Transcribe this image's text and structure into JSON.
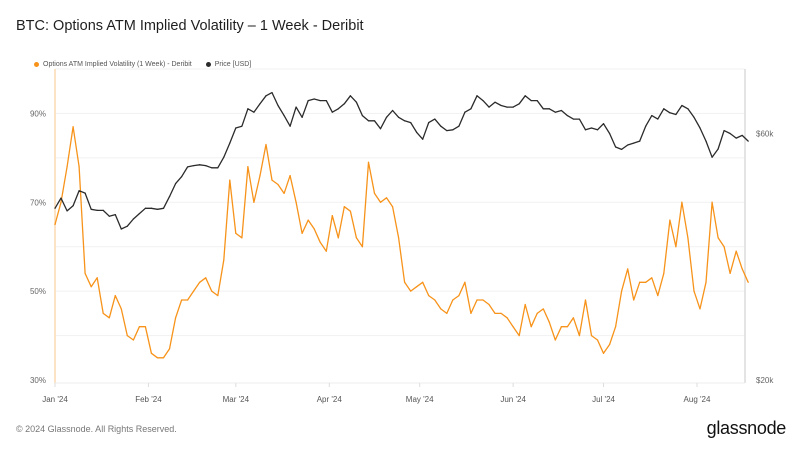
{
  "title": "BTC: Options ATM Implied Volatility – 1 Week - Deribit",
  "footer": "© 2024 Glassnode. All Rights Reserved.",
  "logo": "glassnode",
  "chart_data": {
    "type": "line",
    "title": "BTC: Options ATM Implied Volatility – 1 Week - Deribit",
    "legend_position": "top-left",
    "grid": true,
    "x_ticks": [
      {
        "date": "2024-01-01",
        "label": "Jan '24"
      },
      {
        "date": "2024-02-01",
        "label": "Feb '24"
      },
      {
        "date": "2024-03-01",
        "label": "Mar '24"
      },
      {
        "date": "2024-04-01",
        "label": "Apr '24"
      },
      {
        "date": "2024-05-01",
        "label": "May '24"
      },
      {
        "date": "2024-06-01",
        "label": "Jun '24"
      },
      {
        "date": "2024-07-01",
        "label": "Jul '24"
      },
      {
        "date": "2024-08-01",
        "label": "Aug '24"
      }
    ],
    "y_left": {
      "ylim": [
        30,
        100
      ],
      "unit": "%",
      "ticks": [
        {
          "v": 30,
          "label": "30%"
        },
        {
          "v": 50,
          "label": "50%"
        },
        {
          "v": 70,
          "label": "70%"
        },
        {
          "v": 90,
          "label": "90%"
        }
      ]
    },
    "y_right": {
      "scale": "log",
      "ylim": [
        20000,
        80000
      ],
      "ticks": [
        {
          "v": 20000,
          "label": "$20k"
        },
        {
          "v": 60000,
          "label": "$60k"
        }
      ]
    },
    "x": [
      "2024-01-01",
      "2024-01-03",
      "2024-01-05",
      "2024-01-07",
      "2024-01-09",
      "2024-01-11",
      "2024-01-13",
      "2024-01-15",
      "2024-01-17",
      "2024-01-19",
      "2024-01-21",
      "2024-01-23",
      "2024-01-25",
      "2024-01-27",
      "2024-01-29",
      "2024-01-31",
      "2024-02-02",
      "2024-02-04",
      "2024-02-06",
      "2024-02-08",
      "2024-02-10",
      "2024-02-12",
      "2024-02-14",
      "2024-02-16",
      "2024-02-18",
      "2024-02-20",
      "2024-02-22",
      "2024-02-24",
      "2024-02-26",
      "2024-02-28",
      "2024-03-01",
      "2024-03-03",
      "2024-03-05",
      "2024-03-07",
      "2024-03-09",
      "2024-03-11",
      "2024-03-13",
      "2024-03-15",
      "2024-03-17",
      "2024-03-19",
      "2024-03-21",
      "2024-03-23",
      "2024-03-25",
      "2024-03-27",
      "2024-03-29",
      "2024-03-31",
      "2024-04-02",
      "2024-04-04",
      "2024-04-06",
      "2024-04-08",
      "2024-04-10",
      "2024-04-12",
      "2024-04-14",
      "2024-04-16",
      "2024-04-18",
      "2024-04-20",
      "2024-04-22",
      "2024-04-24",
      "2024-04-26",
      "2024-04-28",
      "2024-04-30",
      "2024-05-02",
      "2024-05-04",
      "2024-05-06",
      "2024-05-08",
      "2024-05-10",
      "2024-05-12",
      "2024-05-14",
      "2024-05-16",
      "2024-05-18",
      "2024-05-20",
      "2024-05-22",
      "2024-05-24",
      "2024-05-26",
      "2024-05-28",
      "2024-05-30",
      "2024-06-01",
      "2024-06-03",
      "2024-06-05",
      "2024-06-07",
      "2024-06-09",
      "2024-06-11",
      "2024-06-13",
      "2024-06-15",
      "2024-06-17",
      "2024-06-19",
      "2024-06-21",
      "2024-06-23",
      "2024-06-25",
      "2024-06-27",
      "2024-06-29",
      "2024-07-01",
      "2024-07-03",
      "2024-07-05",
      "2024-07-07",
      "2024-07-09",
      "2024-07-11",
      "2024-07-13",
      "2024-07-15",
      "2024-07-17",
      "2024-07-19",
      "2024-07-21",
      "2024-07-23",
      "2024-07-25",
      "2024-07-27",
      "2024-07-29",
      "2024-07-31",
      "2024-08-02",
      "2024-08-04",
      "2024-08-06",
      "2024-08-08",
      "2024-08-10",
      "2024-08-12",
      "2024-08-14",
      "2024-08-16",
      "2024-08-18"
    ],
    "series": [
      {
        "name": "Options ATM Implied Volatility (1 Week) - Deribit",
        "axis": "left",
        "color": "#f7931a",
        "values": [
          65,
          70,
          78,
          87,
          78,
          54,
          51,
          53,
          45,
          44,
          49,
          46,
          40,
          39,
          42,
          42,
          36,
          35,
          35,
          37,
          44,
          48,
          48,
          50,
          52,
          53,
          50,
          49,
          57,
          75,
          63,
          62,
          78,
          70,
          76,
          83,
          75,
          74,
          72,
          76,
          70,
          63,
          66,
          64,
          61,
          59,
          67,
          62,
          69,
          68,
          62,
          60,
          79,
          72,
          70,
          71,
          69,
          62,
          52,
          50,
          51,
          52,
          49,
          48,
          46,
          45,
          48,
          49,
          52,
          45,
          48,
          48,
          47,
          45,
          45,
          44,
          42,
          40,
          47,
          42,
          45,
          46,
          43,
          39,
          42,
          42,
          44,
          40,
          48,
          40,
          39,
          36,
          38,
          42,
          50,
          55,
          48,
          52,
          52,
          53,
          49,
          54,
          66,
          60,
          70,
          62,
          50,
          46,
          52,
          70,
          62,
          60,
          54,
          59,
          55,
          52
        ]
      },
      {
        "name": "Price [USD]",
        "axis": "right",
        "color": "#2b2b2b",
        "values": [
          43000,
          45000,
          42500,
          43500,
          46500,
          46000,
          42800,
          42600,
          42600,
          41500,
          41800,
          39200,
          39700,
          41000,
          42000,
          43000,
          43000,
          42800,
          43000,
          45300,
          48000,
          49500,
          51700,
          52000,
          52200,
          52000,
          51500,
          51500,
          54000,
          57500,
          61500,
          62000,
          67000,
          66000,
          68500,
          71000,
          72000,
          68000,
          65000,
          62000,
          67500,
          64500,
          69500,
          70000,
          69500,
          69500,
          66000,
          67000,
          68500,
          71000,
          69000,
          65000,
          63500,
          63500,
          61300,
          64500,
          66500,
          64500,
          63500,
          63000,
          60300,
          58500,
          63000,
          64000,
          62000,
          60800,
          61000,
          62000,
          66000,
          67000,
          71000,
          69500,
          67500,
          69000,
          68000,
          67500,
          67500,
          68500,
          71000,
          69500,
          69500,
          67000,
          67000,
          66000,
          66500,
          65000,
          64000,
          64000,
          61000,
          61500,
          61000,
          62700,
          60000,
          56500,
          55900,
          57000,
          57500,
          58000,
          62000,
          65000,
          64000,
          67000,
          65800,
          65300,
          68000,
          67000,
          64500,
          61500,
          58000,
          54000,
          56000,
          60800,
          60000,
          58800,
          59500,
          58000
        ]
      }
    ]
  }
}
